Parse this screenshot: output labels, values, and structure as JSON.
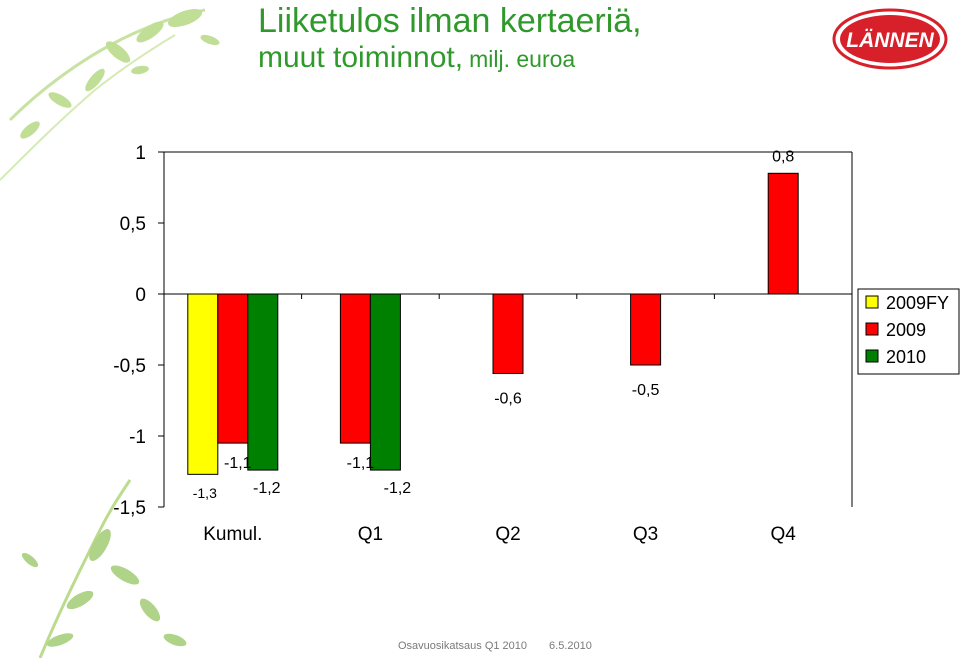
{
  "header": {
    "title_line1": "Liiketulos ilman kertaeriä,",
    "title_line2": "muut toiminnot,",
    "title_unit": "milj. euroa",
    "title_color": "#2f9a2b"
  },
  "logo": {
    "text": "LÄNNEN",
    "color": "#d8202a"
  },
  "footer": {
    "left": "Osavuosikatsaus Q1 2010",
    "right": "6.5.2010"
  },
  "chart_data": {
    "type": "bar",
    "categories": [
      "Kumul.",
      "Q1",
      "Q2",
      "Q3",
      "Q4"
    ],
    "series": [
      {
        "name": "2009FY",
        "color": "#ffff00",
        "values": [
          -1.27,
          null,
          null,
          null,
          null
        ],
        "labels": [
          "-1,3",
          null,
          null,
          null,
          null
        ]
      },
      {
        "name": "2009",
        "color": "#ff0000",
        "values": [
          -1.05,
          -1.05,
          -0.56,
          -0.5,
          0.85
        ],
        "labels": [
          "-1,1",
          "-1,1",
          "-0,6",
          "-0,5",
          "0,8"
        ]
      },
      {
        "name": "2010",
        "color": "#008000",
        "values": [
          -1.24,
          -1.24,
          null,
          null,
          null
        ],
        "labels": [
          "-1,2",
          "-1,2",
          null,
          null,
          null
        ]
      }
    ],
    "yticks": [
      1,
      0.5,
      0,
      -0.5,
      -1,
      -1.5
    ],
    "ytick_labels": [
      "1",
      "0,5",
      "0",
      "-0,5",
      "-1",
      "-1,5"
    ],
    "ylim": [
      -1.5,
      1
    ],
    "legend_position": "right",
    "grid": false
  }
}
